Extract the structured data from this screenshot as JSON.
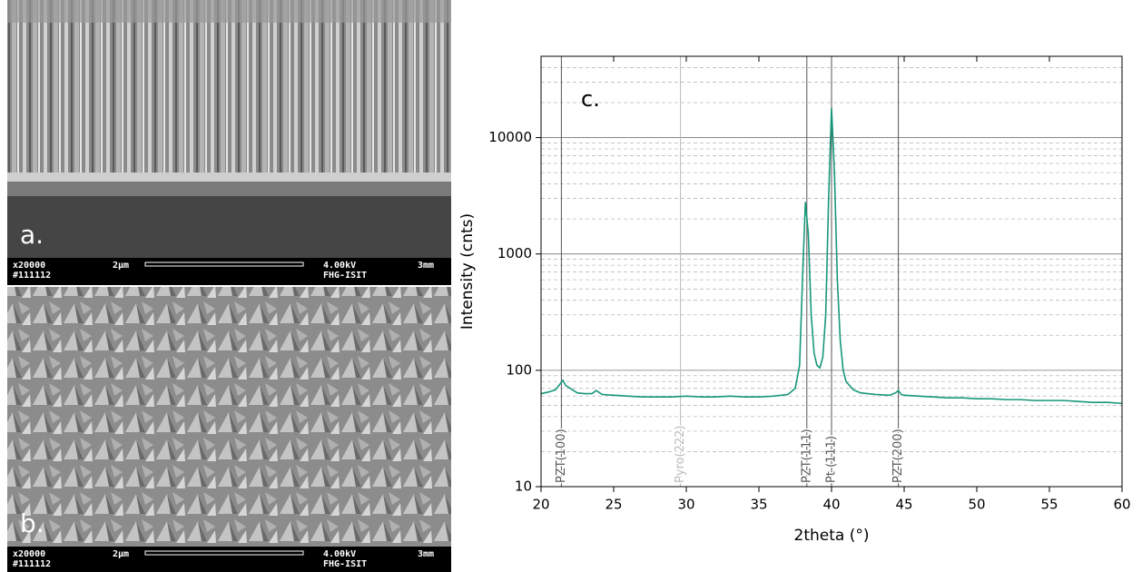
{
  "images": [
    {
      "label": "a.",
      "info": {
        "magnification": "x20000",
        "id": "#111112",
        "scale": "2µm",
        "voltage": "4.00kV",
        "lab": "FHG-ISIT",
        "distance": "3mm"
      }
    },
    {
      "label": "b.",
      "info": {
        "magnification": "x20000",
        "id": "#111112",
        "scale": "2µm",
        "voltage": "4.00kV",
        "lab": "FHG-ISIT",
        "distance": "3mm"
      }
    }
  ],
  "chart_data": {
    "type": "line",
    "annotation": "c.",
    "x_label": "2theta (°)",
    "y_label": "Intensity (cnts)",
    "xlim": [
      20,
      60
    ],
    "xticks": [
      20,
      25,
      30,
      35,
      40,
      45,
      50,
      55,
      60
    ],
    "ylim": [
      10,
      50000
    ],
    "yticks": [
      10,
      100,
      1000,
      10000
    ],
    "log_y": true,
    "grid": true,
    "y_minor_ticks": [
      20,
      30,
      40,
      50,
      60,
      70,
      80,
      90,
      200,
      300,
      400,
      500,
      600,
      700,
      800,
      900,
      2000,
      3000,
      4000,
      5000,
      6000,
      7000,
      8000,
      9000,
      20000,
      30000,
      40000
    ],
    "x": [
      20,
      20.5,
      21,
      21.3,
      21.5,
      21.7,
      22,
      22.5,
      23,
      23.5,
      23.8,
      24.2,
      25,
      26,
      27,
      28,
      29,
      30,
      31,
      32,
      33,
      34,
      35,
      36,
      37,
      37.5,
      37.8,
      38.0,
      38.2,
      38.4,
      38.6,
      38.8,
      39.0,
      39.2,
      39.4,
      39.6,
      39.8,
      40.0,
      40.2,
      40.4,
      40.6,
      40.8,
      41,
      41.5,
      42,
      43,
      44,
      44.4,
      44.6,
      44.8,
      45,
      46,
      47,
      48,
      49,
      50,
      51,
      52,
      53,
      54,
      55,
      56,
      57,
      58,
      59,
      60
    ],
    "series": [
      {
        "color": "#17977a",
        "values": [
          63,
          65,
          68,
          76,
          82,
          74,
          70,
          64,
          63,
          63,
          67,
          62,
          61,
          60,
          59,
          59,
          59,
          60,
          59,
          59,
          60,
          59,
          59,
          60,
          62,
          70,
          110,
          600,
          2800,
          1500,
          300,
          140,
          110,
          105,
          130,
          300,
          3000,
          18000,
          5000,
          600,
          180,
          100,
          80,
          68,
          64,
          62,
          61,
          64,
          67,
          62,
          61,
          60,
          59,
          58,
          58,
          57,
          57,
          56,
          56,
          55,
          55,
          55,
          54,
          53,
          53,
          52
        ]
      }
    ],
    "markers": [
      {
        "x": 21.4,
        "label": "PZT(100)",
        "color": "#555555"
      },
      {
        "x": 29.6,
        "label": "Pyro(222)",
        "color": "#bbbbbb"
      },
      {
        "x": 38.3,
        "label": "PZT(111)",
        "color": "#555555"
      },
      {
        "x": 40.0,
        "label": "Pt (111)",
        "color": "#555555"
      },
      {
        "x": 44.6,
        "label": "PZT(200)",
        "color": "#555555"
      }
    ]
  }
}
